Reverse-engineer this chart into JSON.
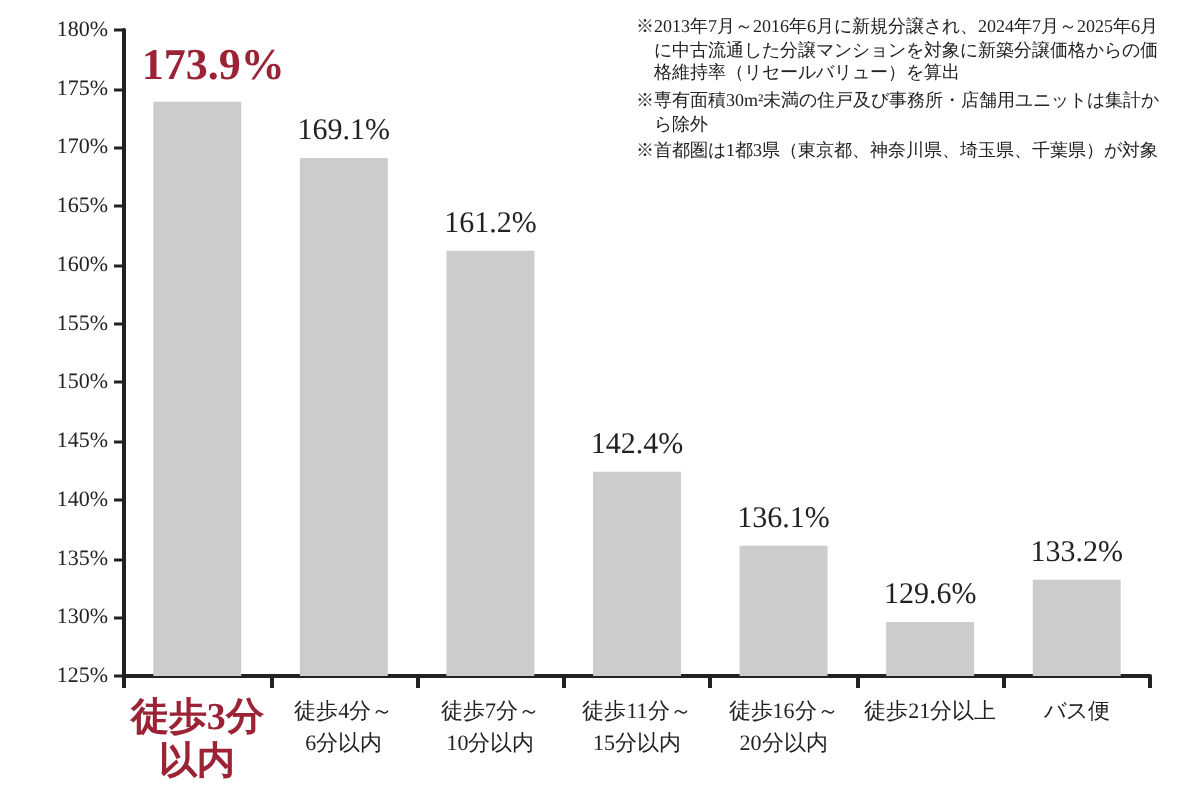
{
  "chart_data": {
    "type": "bar",
    "categories": [
      "徒歩3分以内",
      "徒歩4分～6分以内",
      "徒歩7分～10分以内",
      "徒歩11分～15分以内",
      "徒歩16分～20分以内",
      "徒歩21分以上",
      "バス便"
    ],
    "values": [
      173.9,
      169.1,
      161.2,
      142.4,
      136.1,
      129.6,
      133.2
    ],
    "value_labels": [
      "173.9%",
      "169.1%",
      "161.2%",
      "142.4%",
      "136.1%",
      "129.6%",
      "133.2%"
    ],
    "color": "#cccccc",
    "ylim": [
      125,
      180
    ],
    "yticks": [
      {
        "value": 125,
        "label": "125%"
      },
      {
        "value": 130,
        "label": "130%"
      },
      {
        "value": 135,
        "label": "135%"
      },
      {
        "value": 140,
        "label": "140%"
      },
      {
        "value": 145,
        "label": "145%"
      },
      {
        "value": 150,
        "label": "150%"
      },
      {
        "value": 155,
        "label": "155%"
      },
      {
        "value": 160,
        "label": "160%"
      },
      {
        "value": 165,
        "label": "165%"
      },
      {
        "value": 170,
        "label": "170%"
      },
      {
        "value": 175,
        "label": "175%"
      },
      {
        "value": 180,
        "label": "180%"
      }
    ],
    "annotations": [
      "※2013年7月～2016年6月に新規分譲され、2024年7月～2025年6月に中古流通した分譲マンションを対象に新築分譲価格からの価格維持率（リセールバリュー）を算出",
      "※専有面積30m²未満の住戸及び事務所・店舗用ユニットは集計から除外",
      "※首都圏は1都3県（東京都、神奈川県、埼玉県、千葉県）が対象"
    ]
  }
}
